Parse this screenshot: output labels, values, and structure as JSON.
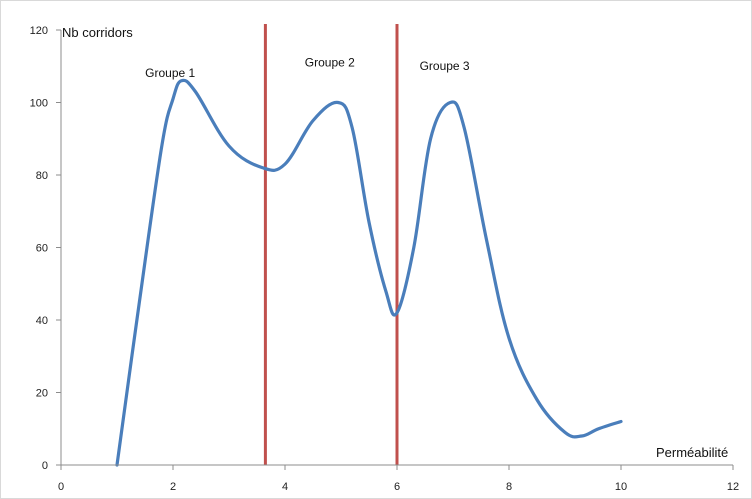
{
  "chart_data": {
    "type": "line",
    "xlabel": "Perméabilité",
    "ylabel": "Nb corridors",
    "xlim": [
      0,
      12
    ],
    "ylim": [
      0,
      120
    ],
    "xticks": [
      0,
      2,
      4,
      6,
      8,
      10,
      12
    ],
    "yticks": [
      0,
      20,
      40,
      60,
      80,
      100,
      120
    ],
    "grid": false,
    "legend": "none",
    "series": [
      {
        "color": "#4a7ebb",
        "x": [
          1.0,
          1.4,
          1.8,
          2.0,
          2.15,
          2.4,
          3.0,
          3.6,
          4.0,
          4.5,
          4.95,
          5.2,
          5.5,
          5.8,
          6.0,
          6.3,
          6.6,
          6.95,
          7.2,
          7.6,
          8.0,
          8.5,
          9.0,
          9.3,
          9.6,
          10.0
        ],
        "y": [
          0,
          45,
          88,
          101,
          106,
          103,
          88,
          82,
          83,
          95,
          100,
          93,
          67,
          48,
          42,
          60,
          90,
          100,
          93,
          62,
          35,
          18,
          9,
          8,
          10,
          12
        ]
      }
    ],
    "dividers": [
      {
        "x": 3.65,
        "color": "#c0504d"
      },
      {
        "x": 6.0,
        "color": "#c0504d"
      }
    ],
    "annotations": [
      {
        "text": "Groupe 1",
        "x": 1.95,
        "y": 107
      },
      {
        "text": "Groupe 2",
        "x": 4.8,
        "y": 110
      },
      {
        "text": "Groupe 3",
        "x": 6.85,
        "y": 109
      }
    ]
  }
}
